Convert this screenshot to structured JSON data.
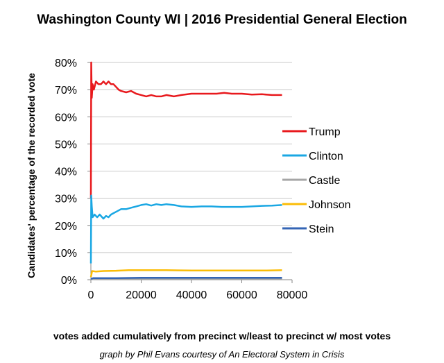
{
  "chart_data": {
    "type": "line",
    "title": "Washington County WI | 2016 Presidential General Election",
    "xlabel": "votes added cumulatively from precinct w/least to precinct w/ most votes",
    "ylabel": "Candidates' percentage of the recorded vote",
    "credit": "graph by Phil Evans courtesy of An Electoral System in Crisis",
    "xlim": [
      0,
      80000
    ],
    "ylim": [
      0,
      80
    ],
    "x_ticks": [
      0,
      20000,
      40000,
      60000,
      80000
    ],
    "x_tick_labels": [
      "0",
      "20000",
      "40000",
      "60000",
      "80000"
    ],
    "y_ticks": [
      0,
      10,
      20,
      30,
      40,
      50,
      60,
      70,
      80
    ],
    "y_tick_labels": [
      "0%",
      "10%",
      "20%",
      "30%",
      "40%",
      "50%",
      "60%",
      "70%",
      "80%"
    ],
    "grid": "horizontal",
    "legend_position": "right",
    "series": [
      {
        "name": "Trump",
        "color": "#e8191d",
        "points": [
          [
            0,
            30
          ],
          [
            150,
            80
          ],
          [
            350,
            67
          ],
          [
            700,
            72
          ],
          [
            1200,
            70
          ],
          [
            2000,
            73
          ],
          [
            3000,
            72
          ],
          [
            4000,
            72
          ],
          [
            5000,
            73
          ],
          [
            6000,
            72
          ],
          [
            7000,
            73
          ],
          [
            8000,
            72
          ],
          [
            9000,
            72
          ],
          [
            10000,
            71
          ],
          [
            11000,
            70
          ],
          [
            12000,
            69.5
          ],
          [
            14000,
            69
          ],
          [
            16000,
            69.5
          ],
          [
            18000,
            68.5
          ],
          [
            20000,
            68
          ],
          [
            22000,
            67.5
          ],
          [
            24000,
            68
          ],
          [
            26000,
            67.5
          ],
          [
            28000,
            67.5
          ],
          [
            30000,
            68
          ],
          [
            33000,
            67.5
          ],
          [
            36000,
            68
          ],
          [
            40000,
            68.5
          ],
          [
            43000,
            68.5
          ],
          [
            46000,
            68.5
          ],
          [
            50000,
            68.5
          ],
          [
            53000,
            68.8
          ],
          [
            56000,
            68.5
          ],
          [
            60000,
            68.5
          ],
          [
            64000,
            68.2
          ],
          [
            68000,
            68.3
          ],
          [
            72000,
            68
          ],
          [
            76000,
            68
          ]
        ]
      },
      {
        "name": "Clinton",
        "color": "#1aa7e3",
        "points": [
          [
            0,
            6
          ],
          [
            150,
            31
          ],
          [
            350,
            27
          ],
          [
            700,
            23
          ],
          [
            1500,
            24
          ],
          [
            2500,
            23
          ],
          [
            3500,
            24
          ],
          [
            5000,
            22.5
          ],
          [
            6000,
            23.5
          ],
          [
            7000,
            23
          ],
          [
            8000,
            24
          ],
          [
            9000,
            24.5
          ],
          [
            10000,
            25
          ],
          [
            12000,
            26
          ],
          [
            14000,
            26
          ],
          [
            16000,
            26.5
          ],
          [
            18000,
            27
          ],
          [
            20000,
            27.5
          ],
          [
            22000,
            27.8
          ],
          [
            24000,
            27.3
          ],
          [
            26000,
            27.8
          ],
          [
            28000,
            27.5
          ],
          [
            30000,
            27.8
          ],
          [
            33000,
            27.5
          ],
          [
            36000,
            27
          ],
          [
            40000,
            26.8
          ],
          [
            44000,
            27
          ],
          [
            48000,
            27
          ],
          [
            52000,
            26.8
          ],
          [
            56000,
            26.8
          ],
          [
            60000,
            26.8
          ],
          [
            64000,
            27
          ],
          [
            68000,
            27.2
          ],
          [
            72000,
            27.3
          ],
          [
            76000,
            27.5
          ]
        ]
      },
      {
        "name": "Castle",
        "color": "#a6a6a6",
        "points": [
          [
            0,
            0.2
          ],
          [
            2000,
            0.3
          ],
          [
            10000,
            0.3
          ],
          [
            20000,
            0.3
          ],
          [
            40000,
            0.3
          ],
          [
            60000,
            0.3
          ],
          [
            76000,
            0.3
          ]
        ]
      },
      {
        "name": "Johnson",
        "color": "#fbbc05",
        "points": [
          [
            0,
            1
          ],
          [
            500,
            3.2
          ],
          [
            2000,
            3
          ],
          [
            5000,
            3.2
          ],
          [
            10000,
            3.3
          ],
          [
            15000,
            3.5
          ],
          [
            20000,
            3.5
          ],
          [
            30000,
            3.5
          ],
          [
            40000,
            3.4
          ],
          [
            50000,
            3.4
          ],
          [
            60000,
            3.4
          ],
          [
            70000,
            3.4
          ],
          [
            76000,
            3.5
          ]
        ]
      },
      {
        "name": "Stein",
        "color": "#3465b5",
        "points": [
          [
            0,
            0.3
          ],
          [
            1000,
            0.6
          ],
          [
            5000,
            0.6
          ],
          [
            10000,
            0.6
          ],
          [
            20000,
            0.7
          ],
          [
            30000,
            0.7
          ],
          [
            40000,
            0.7
          ],
          [
            50000,
            0.7
          ],
          [
            60000,
            0.7
          ],
          [
            70000,
            0.7
          ],
          [
            76000,
            0.7
          ]
        ]
      }
    ]
  }
}
